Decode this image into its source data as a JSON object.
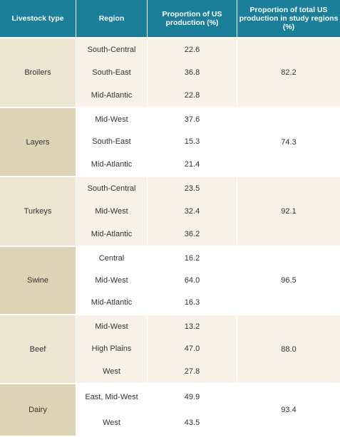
{
  "headers": [
    "Livestock type",
    "Region",
    "Proportion of US production (%)",
    "Proportion of total US production in study regions (%)"
  ],
  "rows": [
    {
      "livestock": "Broilers",
      "total": "82.2",
      "regions": [
        {
          "region": "South-Central",
          "proportion": "22.6"
        },
        {
          "region": "South-East",
          "proportion": "36.8"
        },
        {
          "region": "Mid-Atlantic",
          "proportion": "22.8"
        }
      ]
    },
    {
      "livestock": "Layers",
      "total": "74.3",
      "regions": [
        {
          "region": "Mid-West",
          "proportion": "37.6"
        },
        {
          "region": "South-East",
          "proportion": "15.3"
        },
        {
          "region": "Mid-Atlantic",
          "proportion": "21.4"
        }
      ]
    },
    {
      "livestock": "Turkeys",
      "total": "92.1",
      "regions": [
        {
          "region": "South-Central",
          "proportion": "23.5"
        },
        {
          "region": "Mid-West",
          "proportion": "32.4"
        },
        {
          "region": "Mid-Atlantic",
          "proportion": "36.2"
        }
      ]
    },
    {
      "livestock": "Swine",
      "total": "96.5",
      "regions": [
        {
          "region": "Central",
          "proportion": "16.2"
        },
        {
          "region": "Mid-West",
          "proportion": "64.0"
        },
        {
          "region": "Mid-Atlantic",
          "proportion": "16.3"
        }
      ]
    },
    {
      "livestock": "Beef",
      "total": "88.0",
      "regions": [
        {
          "region": "Mid-West",
          "proportion": "13.2"
        },
        {
          "region": "High Plains",
          "proportion": "47.0"
        },
        {
          "region": "West",
          "proportion": "27.8"
        }
      ]
    },
    {
      "livestock": "Dairy",
      "total": "93.4",
      "regions": [
        {
          "region": "East, Mid-West",
          "proportion": "49.9"
        },
        {
          "region": "West",
          "proportion": "43.5"
        }
      ]
    }
  ],
  "colors": {
    "header_bg": "#1b7f9a",
    "header_text": "#ffffff",
    "row_odd_type": "#ece5d2",
    "row_odd_body": "#f6f2e6",
    "row_even_type": "#ded3b5",
    "row_even_body": "#ffffff"
  }
}
